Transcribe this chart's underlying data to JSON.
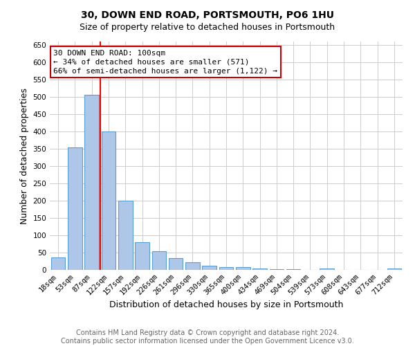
{
  "title": "30, DOWN END ROAD, PORTSMOUTH, PO6 1HU",
  "subtitle": "Size of property relative to detached houses in Portsmouth",
  "xlabel": "Distribution of detached houses by size in Portsmouth",
  "ylabel": "Number of detached properties",
  "bar_labels": [
    "18sqm",
    "53sqm",
    "87sqm",
    "122sqm",
    "157sqm",
    "192sqm",
    "226sqm",
    "261sqm",
    "296sqm",
    "330sqm",
    "365sqm",
    "400sqm",
    "434sqm",
    "469sqm",
    "504sqm",
    "539sqm",
    "573sqm",
    "608sqm",
    "643sqm",
    "677sqm",
    "712sqm"
  ],
  "bar_heights": [
    37,
    355,
    507,
    400,
    200,
    80,
    55,
    35,
    23,
    12,
    8,
    8,
    4,
    3,
    3,
    1,
    5,
    1,
    1,
    1,
    5
  ],
  "bar_color": "#aec6e8",
  "bar_edge_color": "#5a9fd4",
  "red_line_x": 2.5,
  "annotation_line1": "30 DOWN END ROAD: 100sqm",
  "annotation_line2": "← 34% of detached houses are smaller (571)",
  "annotation_line3": "66% of semi-detached houses are larger (1,122) →",
  "annotation_box_color": "#ffffff",
  "annotation_box_edge_color": "#cc0000",
  "ylim": [
    0,
    660
  ],
  "yticks": [
    0,
    50,
    100,
    150,
    200,
    250,
    300,
    350,
    400,
    450,
    500,
    550,
    600,
    650
  ],
  "footer1": "Contains HM Land Registry data © Crown copyright and database right 2024.",
  "footer2": "Contains public sector information licensed under the Open Government Licence v3.0.",
  "background_color": "#ffffff",
  "grid_color": "#cccccc",
  "title_fontsize": 10,
  "subtitle_fontsize": 9,
  "xlabel_fontsize": 9,
  "ylabel_fontsize": 9,
  "tick_fontsize": 7.5,
  "annotation_fontsize": 8,
  "footer_fontsize": 7
}
